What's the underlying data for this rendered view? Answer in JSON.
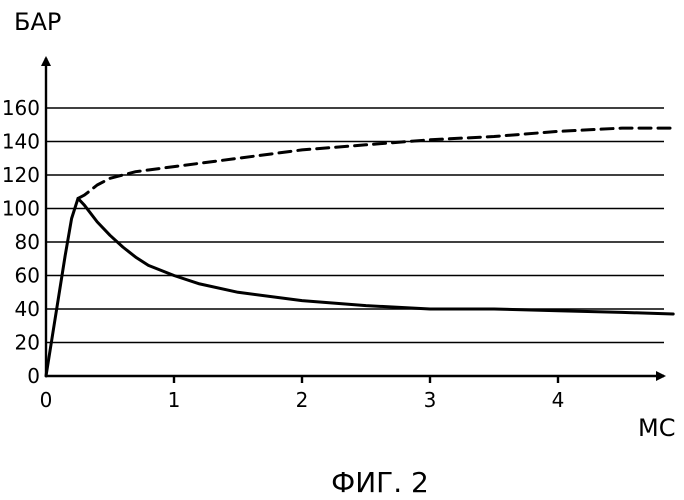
{
  "chart_data": {
    "type": "line",
    "ylabel": "БАР",
    "xlabel": "МС",
    "caption": "ФИГ. 2",
    "xlim": [
      0,
      4.9
    ],
    "ylim": [
      0,
      160
    ],
    "x_ticks": [
      "0",
      "1",
      "2",
      "3",
      "4"
    ],
    "y_ticks": [
      "0",
      "20",
      "40",
      "60",
      "80",
      "100",
      "120",
      "140",
      "160"
    ],
    "grid": true,
    "series": [
      {
        "style": "solid",
        "x": [
          0,
          0.05,
          0.1,
          0.15,
          0.2,
          0.25,
          0.3,
          0.4,
          0.5,
          0.6,
          0.7,
          0.8,
          1.0,
          1.2,
          1.5,
          2.0,
          2.5,
          3.0,
          3.5,
          4.0,
          4.5,
          4.9
        ],
        "y": [
          0,
          24,
          48,
          72,
          94,
          106,
          102,
          92,
          84,
          77,
          71,
          66,
          60,
          55,
          50,
          45,
          42,
          40,
          40,
          39,
          38,
          37
        ]
      },
      {
        "style": "dashed",
        "x": [
          0.25,
          0.3,
          0.35,
          0.4,
          0.5,
          0.6,
          0.7,
          0.8,
          1.0,
          1.2,
          1.5,
          2.0,
          2.5,
          3.0,
          3.5,
          4.0,
          4.5,
          4.9
        ],
        "y": [
          106,
          108,
          111,
          114,
          118,
          120,
          122,
          123,
          125,
          127,
          130,
          135,
          138,
          141,
          143,
          146,
          148,
          148
        ]
      }
    ]
  }
}
